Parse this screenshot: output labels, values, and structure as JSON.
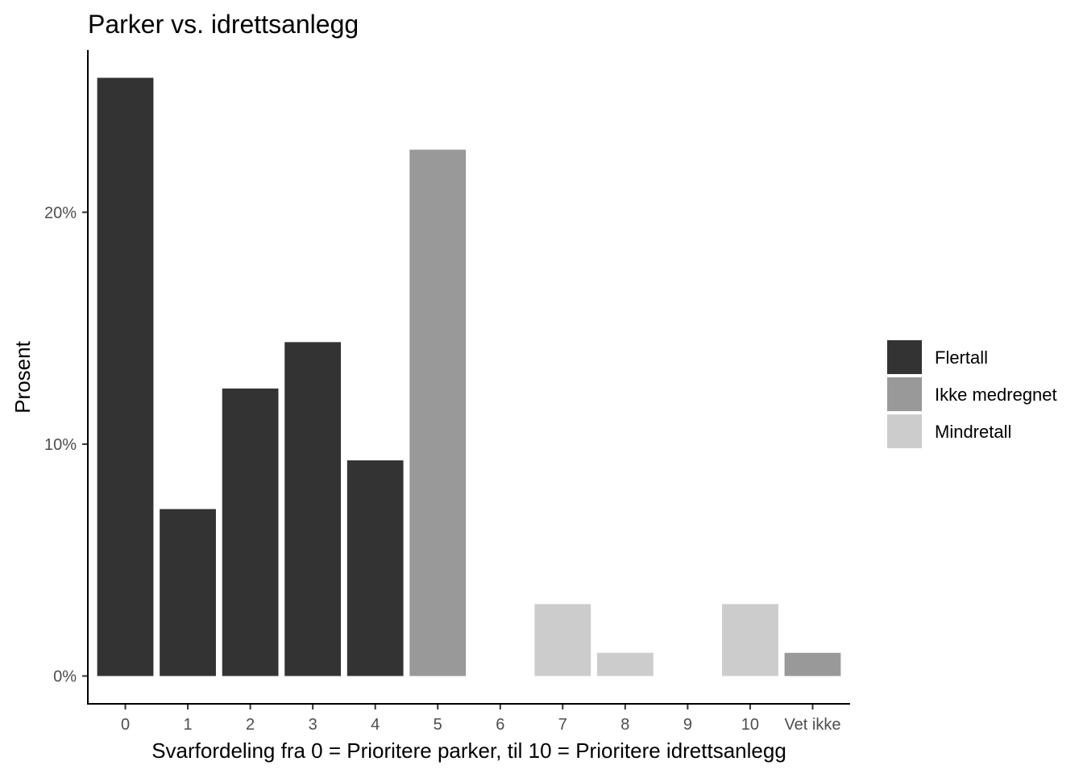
{
  "chart_data": {
    "type": "bar",
    "title": "Parker vs. idrettsanlegg",
    "xlabel": "Svarfordeling fra 0 = Prioritere parker, til 10 = Prioritere idrettsanlegg",
    "ylabel": "Prosent",
    "categories": [
      "0",
      "1",
      "2",
      "3",
      "4",
      "5",
      "6",
      "7",
      "8",
      "9",
      "10",
      "Vet ikke"
    ],
    "values": [
      25.8,
      7.2,
      12.4,
      14.4,
      9.3,
      22.7,
      0,
      3.1,
      1.0,
      0,
      3.1,
      1.0
    ],
    "groups": [
      "Flertall",
      "Flertall",
      "Flertall",
      "Flertall",
      "Flertall",
      "Ikke medregnet",
      null,
      "Mindretall",
      "Mindretall",
      null,
      "Mindretall",
      "Ikke medregnet"
    ],
    "ylim": [
      -1.2,
      27.0
    ],
    "yticks": [
      0,
      10,
      20
    ],
    "ytick_labels": [
      "0%",
      "10%",
      "20%"
    ],
    "legend": {
      "placement": "right",
      "entries": [
        {
          "name": "Flertall",
          "color": "#333333"
        },
        {
          "name": "Ikke medregnet",
          "color": "#999999"
        },
        {
          "name": "Mindretall",
          "color": "#cccccc"
        }
      ]
    },
    "grid": false
  }
}
